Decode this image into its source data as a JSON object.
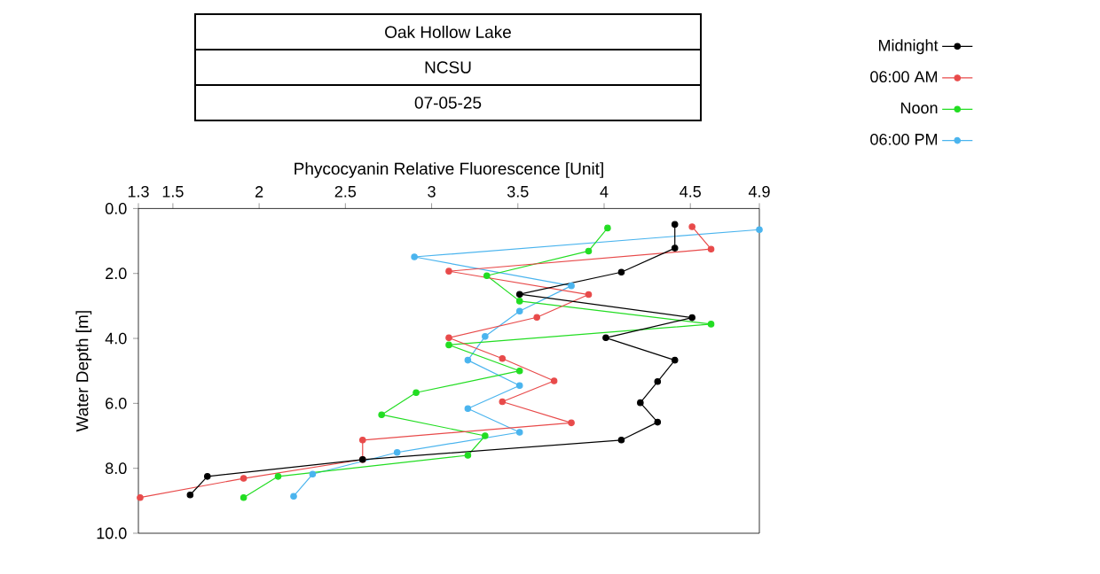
{
  "chart_data": {
    "type": "line",
    "title": "Oak Hollow Lake",
    "subtitle": "NCSU",
    "annotations": [
      "07-05-25"
    ],
    "xlabel": "Phycocyanin Relative Fluorescence [Unit]",
    "ylabel": "Water Depth [m]",
    "xlim": [
      1.3,
      4.9
    ],
    "ylim": [
      10,
      0
    ],
    "xticks": [
      1.3,
      1.5,
      2,
      2.5,
      3,
      3.5,
      4,
      4.5,
      4.9
    ],
    "yticks": [
      {
        "value": 0,
        "label": "0.0"
      },
      {
        "value": 2,
        "label": "2.0"
      },
      {
        "value": 4,
        "label": "4.0"
      },
      {
        "value": 6,
        "label": "6.0"
      },
      {
        "value": 8,
        "label": "8.0"
      },
      {
        "value": 10,
        "label": "10.0"
      }
    ],
    "legend": "top right",
    "marker": "circle",
    "line_style": "solid",
    "grid": false,
    "series": [
      {
        "name": "Midnight",
        "color": "#000000",
        "x": [
          4.41,
          4.41,
          4.1,
          3.51,
          4.51,
          4.01,
          4.41,
          4.31,
          4.21,
          4.31,
          4.1,
          2.6,
          1.7,
          1.6
        ],
        "values": [
          0.49,
          1.22,
          1.96,
          2.64,
          3.36,
          3.98,
          4.67,
          5.33,
          5.98,
          6.58,
          7.13,
          7.73,
          8.25,
          8.82
        ]
      },
      {
        "name": "06:00 AM",
        "color": "#e84a4a",
        "x": [
          4.51,
          4.62,
          3.1,
          3.91,
          3.61,
          3.1,
          3.41,
          3.71,
          3.41,
          3.81,
          2.6,
          2.6,
          1.91,
          1.31
        ],
        "values": [
          0.56,
          1.25,
          1.93,
          2.65,
          3.35,
          3.98,
          4.62,
          5.31,
          5.95,
          6.6,
          7.13,
          7.73,
          8.31,
          8.9
        ]
      },
      {
        "name": "Noon",
        "color": "#22dd22",
        "x": [
          4.02,
          3.91,
          3.32,
          3.51,
          4.62,
          3.1,
          3.51,
          2.91,
          2.71,
          3.31,
          3.21,
          2.11,
          1.91
        ],
        "values": [
          0.6,
          1.31,
          2.07,
          2.85,
          3.56,
          4.2,
          5.0,
          5.67,
          6.35,
          7.0,
          7.6,
          8.25,
          8.9
        ]
      },
      {
        "name": "06:00 PM",
        "color": "#4ab4ee",
        "x": [
          4.9,
          2.9,
          3.81,
          3.51,
          3.31,
          3.21,
          3.51,
          3.21,
          3.51,
          2.8,
          2.31,
          2.2
        ],
        "values": [
          0.65,
          1.49,
          2.38,
          3.16,
          3.94,
          4.67,
          5.45,
          6.16,
          6.89,
          7.51,
          8.18,
          8.86
        ]
      }
    ]
  }
}
